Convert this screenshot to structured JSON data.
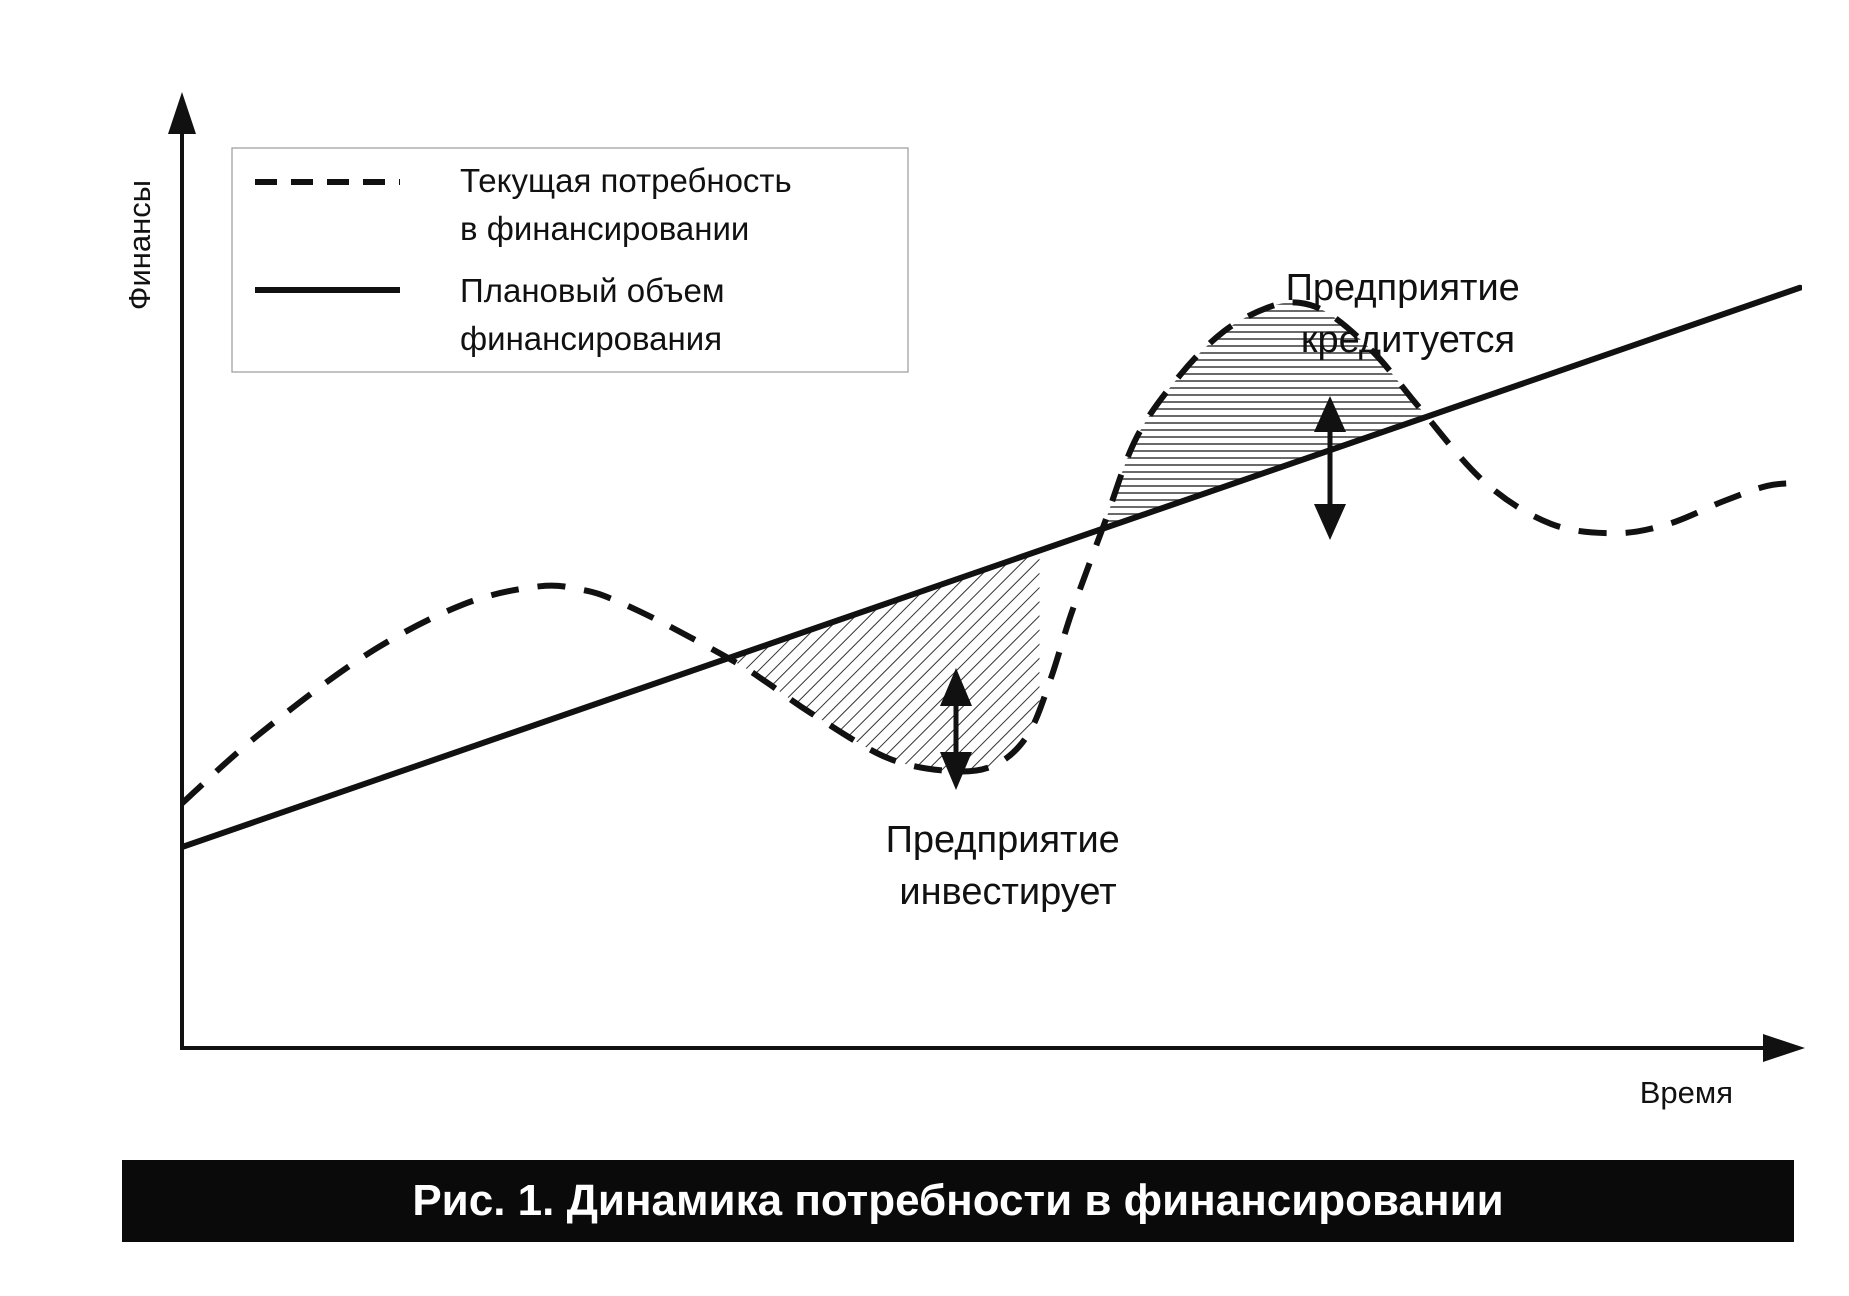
{
  "chart_data": {
    "type": "line",
    "xlabel": "Время",
    "ylabel": "Финансы",
    "grid": false,
    "legend_position": "top-left",
    "series": [
      {
        "name": "Текущая потребность в финансировании",
        "style": "dashed",
        "color": "#111111",
        "x": [
          0,
          0.047,
          0.114,
          0.174,
          0.221,
          0.248,
          0.268,
          0.3,
          0.342,
          0.362,
          0.389,
          0.436,
          0.476,
          0.503,
          0.523,
          0.537,
          0.55,
          0.57,
          0.59,
          0.617,
          0.644,
          0.671,
          0.691,
          0.711,
          0.738,
          0.765,
          0.805,
          0.846,
          0.886,
          0.919,
          0.953,
          0.98,
          1.0
        ],
        "y": [
          0.258,
          0.33,
          0.415,
          0.468,
          0.487,
          0.483,
          0.472,
          0.446,
          0.407,
          0.385,
          0.353,
          0.306,
          0.292,
          0.299,
          0.331,
          0.39,
          0.46,
          0.553,
          0.644,
          0.71,
          0.756,
          0.781,
          0.786,
          0.772,
          0.731,
          0.675,
          0.597,
          0.553,
          0.543,
          0.553,
          0.577,
          0.593,
          0.596
        ]
      },
      {
        "name": "Плановый объем финансирования",
        "style": "solid",
        "color": "#111111",
        "x": [
          0,
          1.0
        ],
        "y": [
          0.212,
          0.802
        ]
      }
    ],
    "annotations": [
      {
        "text_lines": [
          "Предприятие",
          "кредитуется"
        ],
        "region": "dashed curve above plan",
        "hatch": "horizontal"
      },
      {
        "text_lines": [
          "Предприятие",
          "инвестирует"
        ],
        "region": "dashed curve below plan",
        "hatch": "diagonal"
      }
    ]
  },
  "legend": {
    "items": [
      {
        "style": "dashed",
        "lines": [
          "Текущая потребность",
          "в финансировании"
        ]
      },
      {
        "style": "solid",
        "lines": [
          "Плановый объем",
          "финансирования"
        ]
      }
    ]
  },
  "caption": "Рис. 1. Динамика потребности в финансировании"
}
